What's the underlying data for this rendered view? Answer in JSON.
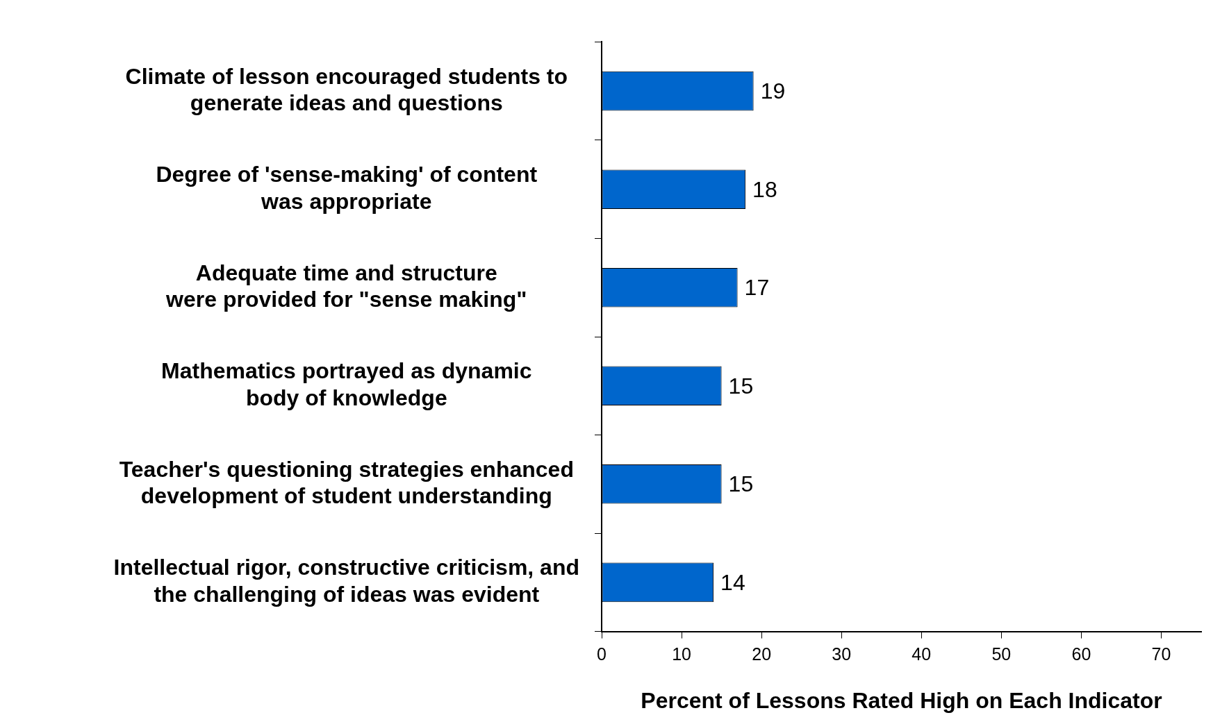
{
  "chart_data": {
    "type": "bar",
    "orientation": "horizontal",
    "categories": [
      "Climate of lesson encouraged students to\ngenerate ideas and questions",
      "Degree of 'sense-making' of content\nwas appropriate",
      "Adequate time and structure\nwere provided for \"sense making\"",
      "Mathematics portrayed as dynamic\nbody of knowledge",
      "Teacher's questioning strategies enhanced\ndevelopment of student understanding",
      "Intellectual rigor, constructive criticism, and\nthe challenging of ideas was evident"
    ],
    "values": [
      19,
      18,
      17,
      15,
      15,
      14
    ],
    "color": "#0066cc",
    "xlim": [
      0,
      75
    ],
    "xticks": [
      0,
      10,
      20,
      30,
      40,
      50,
      60,
      70
    ],
    "xlabel": "Percent of Lessons Rated High on Each Indicator",
    "data_labels": true,
    "grid": false,
    "legend": false
  }
}
